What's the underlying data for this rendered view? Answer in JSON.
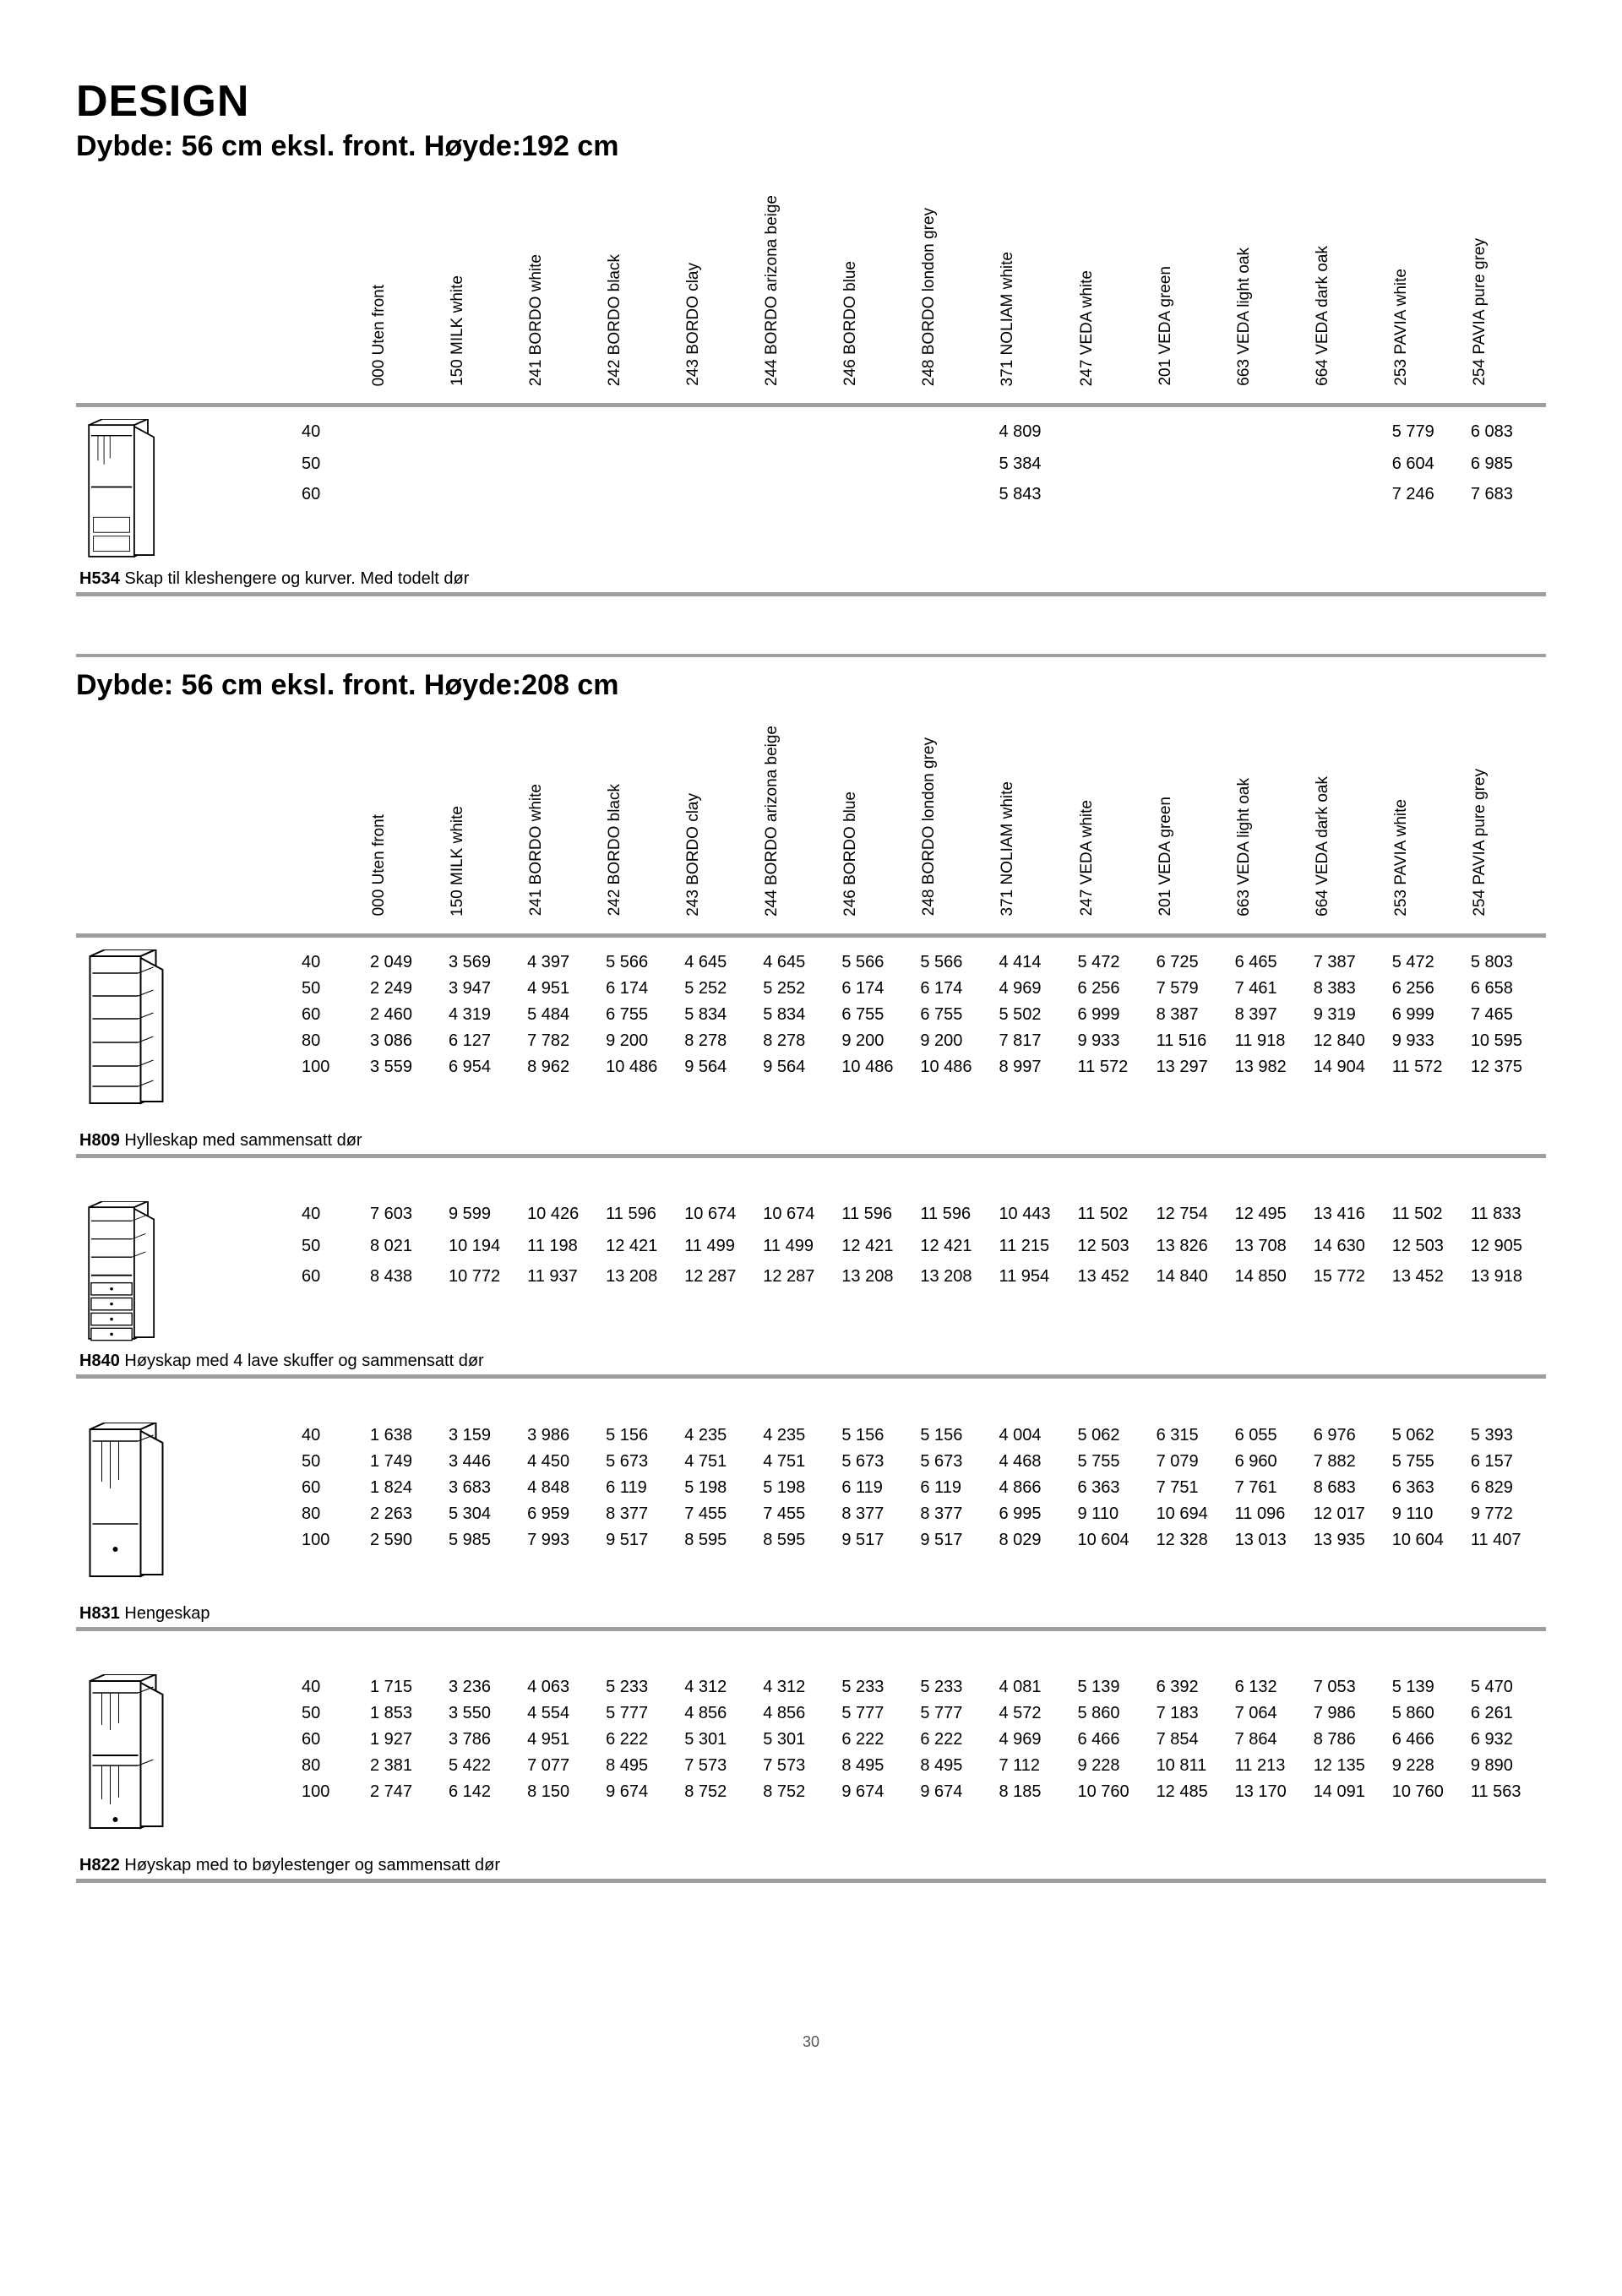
{
  "page_title": "DESIGN",
  "subtitle_192": "Dybde: 56 cm eksl. front. Høyde:192 cm",
  "subtitle_208": "Dybde: 56 cm eksl. front. Høyde:208 cm",
  "page_number": "30",
  "finishes": [
    "000 Uten front",
    "150 MILK white",
    "241 BORDO white",
    "242 BORDO black",
    "243 BORDO clay",
    "244 BORDO arizona beige",
    "246 BORDO blue",
    "248 BORDO london grey",
    "371 NOLIAM white",
    "247 VEDA white",
    "201 VEDA green",
    "663 VEDA light oak",
    "664 VEDA dark oak",
    "253 PAVIA white",
    "254 PAVIA pure grey"
  ],
  "sections": [
    {
      "id": "H534",
      "caption_code": "H534",
      "caption_text": "Skap til kleshengere og kurver. Med todelt dør",
      "svg": "h534",
      "rows": [
        {
          "size": "40",
          "p": [
            "",
            "",
            "",
            "",
            "",
            "",
            "",
            "",
            "4 809",
            "",
            "",
            "",
            "",
            "5 779",
            "6 083"
          ]
        },
        {
          "size": "50",
          "p": [
            "",
            "",
            "",
            "",
            "",
            "",
            "",
            "",
            "5 384",
            "",
            "",
            "",
            "",
            "6 604",
            "6 985"
          ]
        },
        {
          "size": "60",
          "p": [
            "",
            "",
            "",
            "",
            "",
            "",
            "",
            "",
            "5 843",
            "",
            "",
            "",
            "",
            "7 246",
            "7 683"
          ]
        }
      ]
    },
    {
      "id": "H809",
      "caption_code": "H809",
      "caption_text": "Hylleskap med sammensatt dør",
      "svg": "h809",
      "rows": [
        {
          "size": "40",
          "p": [
            "2 049",
            "3 569",
            "4 397",
            "5 566",
            "4 645",
            "4 645",
            "5 566",
            "5 566",
            "4 414",
            "5 472",
            "6 725",
            "6 465",
            "7 387",
            "5 472",
            "5 803"
          ]
        },
        {
          "size": "50",
          "p": [
            "2 249",
            "3 947",
            "4 951",
            "6 174",
            "5 252",
            "5 252",
            "6 174",
            "6 174",
            "4 969",
            "6 256",
            "7 579",
            "7 461",
            "8 383",
            "6 256",
            "6 658"
          ]
        },
        {
          "size": "60",
          "p": [
            "2 460",
            "4 319",
            "5 484",
            "6 755",
            "5 834",
            "5 834",
            "6 755",
            "6 755",
            "5 502",
            "6 999",
            "8 387",
            "8 397",
            "9 319",
            "6 999",
            "7 465"
          ]
        },
        {
          "size": "80",
          "p": [
            "3 086",
            "6 127",
            "7 782",
            "9 200",
            "8 278",
            "8 278",
            "9 200",
            "9 200",
            "7 817",
            "9 933",
            "11 516",
            "11 918",
            "12 840",
            "9 933",
            "10 595"
          ]
        },
        {
          "size": "100",
          "p": [
            "3 559",
            "6 954",
            "8 962",
            "10 486",
            "9 564",
            "9 564",
            "10 486",
            "10 486",
            "8 997",
            "11 572",
            "13 297",
            "13 982",
            "14 904",
            "11 572",
            "12 375"
          ]
        }
      ]
    },
    {
      "id": "H840",
      "caption_code": "H840",
      "caption_text": "Høyskap med 4 lave skuffer og sammensatt dør",
      "svg": "h840",
      "rows": [
        {
          "size": "40",
          "p": [
            "7 603",
            "9 599",
            "10 426",
            "11 596",
            "10 674",
            "10 674",
            "11 596",
            "11 596",
            "10 443",
            "11 502",
            "12 754",
            "12 495",
            "13 416",
            "11 502",
            "11 833"
          ]
        },
        {
          "size": "50",
          "p": [
            "8 021",
            "10 194",
            "11 198",
            "12 421",
            "11 499",
            "11 499",
            "12 421",
            "12 421",
            "11 215",
            "12 503",
            "13 826",
            "13 708",
            "14 630",
            "12 503",
            "12 905"
          ]
        },
        {
          "size": "60",
          "p": [
            "8 438",
            "10 772",
            "11 937",
            "13 208",
            "12 287",
            "12 287",
            "13 208",
            "13 208",
            "11 954",
            "13 452",
            "14 840",
            "14 850",
            "15 772",
            "13 452",
            "13 918"
          ]
        }
      ]
    },
    {
      "id": "H831",
      "caption_code": "H831",
      "caption_text": "Hengeskap",
      "svg": "h831",
      "rows": [
        {
          "size": "40",
          "p": [
            "1 638",
            "3 159",
            "3 986",
            "5 156",
            "4 235",
            "4 235",
            "5 156",
            "5 156",
            "4 004",
            "5 062",
            "6 315",
            "6 055",
            "6 976",
            "5 062",
            "5 393"
          ]
        },
        {
          "size": "50",
          "p": [
            "1 749",
            "3 446",
            "4 450",
            "5 673",
            "4 751",
            "4 751",
            "5 673",
            "5 673",
            "4 468",
            "5 755",
            "7 079",
            "6 960",
            "7 882",
            "5 755",
            "6 157"
          ]
        },
        {
          "size": "60",
          "p": [
            "1 824",
            "3 683",
            "4 848",
            "6 119",
            "5 198",
            "5 198",
            "6 119",
            "6 119",
            "4 866",
            "6 363",
            "7 751",
            "7 761",
            "8 683",
            "6 363",
            "6 829"
          ]
        },
        {
          "size": "80",
          "p": [
            "2 263",
            "5 304",
            "6 959",
            "8 377",
            "7 455",
            "7 455",
            "8 377",
            "8 377",
            "6 995",
            "9 110",
            "10 694",
            "11 096",
            "12 017",
            "9 110",
            "9 772"
          ]
        },
        {
          "size": "100",
          "p": [
            "2 590",
            "5 985",
            "7 993",
            "9 517",
            "8 595",
            "8 595",
            "9 517",
            "9 517",
            "8 029",
            "10 604",
            "12 328",
            "13 013",
            "13 935",
            "10 604",
            "11 407"
          ]
        }
      ]
    },
    {
      "id": "H822",
      "caption_code": "H822",
      "caption_text": "Høyskap med to bøylestenger og sammensatt dør",
      "svg": "h822",
      "rows": [
        {
          "size": "40",
          "p": [
            "1 715",
            "3 236",
            "4 063",
            "5 233",
            "4 312",
            "4 312",
            "5 233",
            "5 233",
            "4 081",
            "5 139",
            "6 392",
            "6 132",
            "7 053",
            "5 139",
            "5 470"
          ]
        },
        {
          "size": "50",
          "p": [
            "1 853",
            "3 550",
            "4 554",
            "5 777",
            "4 856",
            "4 856",
            "5 777",
            "5 777",
            "4 572",
            "5 860",
            "7 183",
            "7 064",
            "7 986",
            "5 860",
            "6 261"
          ]
        },
        {
          "size": "60",
          "p": [
            "1 927",
            "3 786",
            "4 951",
            "6 222",
            "5 301",
            "5 301",
            "6 222",
            "6 222",
            "4 969",
            "6 466",
            "7 854",
            "7 864",
            "8 786",
            "6 466",
            "6 932"
          ]
        },
        {
          "size": "80",
          "p": [
            "2 381",
            "5 422",
            "7 077",
            "8 495",
            "7 573",
            "7 573",
            "8 495",
            "8 495",
            "7 112",
            "9 228",
            "10 811",
            "11 213",
            "12 135",
            "9 228",
            "9 890"
          ]
        },
        {
          "size": "100",
          "p": [
            "2 747",
            "6 142",
            "8 150",
            "9 674",
            "8 752",
            "8 752",
            "9 674",
            "9 674",
            "8 185",
            "10 760",
            "12 485",
            "13 170",
            "14 091",
            "10 760",
            "11 563"
          ]
        }
      ]
    }
  ]
}
